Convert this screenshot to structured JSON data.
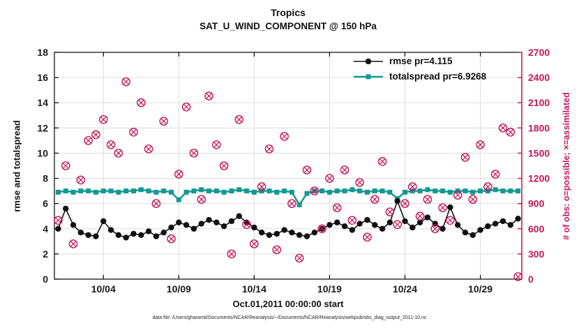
{
  "figure": {
    "title": "Tropics",
    "subtitle": "SAT_U_WIND_COMPONENT @ 150 hPa",
    "xlabel": "Oct.01,2011 00:00:00 start",
    "ylabel_left": "rmse and totalspread",
    "ylabel_right": "# of obs: o=possible; ×=assimilated",
    "footer": "data file: /Users/gharamti/Documents/NCAR/Reanalysis/~/Documents/NCAR/Reanalysis/webpub/obs_diag_output_2011-10.nc"
  },
  "legend": {
    "entries": [
      {
        "label": "rmse pr=4.115",
        "color": "#111111",
        "marker": "circle"
      },
      {
        "label": "totalspread pr=6.9268",
        "color": "#149990",
        "marker": "square"
      }
    ]
  },
  "colors": {
    "axis": "#000000",
    "grid": "#dddddd",
    "tick_text": "#1a1a1a",
    "right_axis": "#C2185B",
    "rmse": "#111111",
    "totalspread": "#149990",
    "observations": "#C2185B",
    "background": "#ffffff"
  },
  "chart_data": {
    "type": "line",
    "title": "Tropics",
    "subtitle": "SAT_U_WIND_COMPONENT @ 150 hPa",
    "xlabel": "Oct.01,2011 00:00:00 start",
    "ylabel_left": "rmse and totalspread",
    "ylabel_right": "# of obs: o=possible; ×=assimilated",
    "xlim": [
      0.75,
      31.75
    ],
    "x_start_day": 1.0,
    "x_step_days": 0.5,
    "x_ticks": [
      {
        "day": 4,
        "label": "10/04"
      },
      {
        "day": 9,
        "label": "10/09"
      },
      {
        "day": 14,
        "label": "10/14"
      },
      {
        "day": 19,
        "label": "10/19"
      },
      {
        "day": 24,
        "label": "10/24"
      },
      {
        "day": 29,
        "label": "10/29"
      }
    ],
    "ylim_left": [
      0,
      18
    ],
    "yticks_left": [
      0,
      2,
      4,
      6,
      8,
      10,
      12,
      14,
      16,
      18
    ],
    "ylim_right": [
      0,
      2700
    ],
    "yticks_right": [
      0,
      300,
      600,
      900,
      1200,
      1500,
      1800,
      2100,
      2400,
      2700
    ],
    "grid": true,
    "legend_position": "top-right-inside",
    "series": [
      {
        "name": "rmse",
        "axis": "left",
        "color": "#111111",
        "marker": "circle",
        "values": [
          4.0,
          5.6,
          4.3,
          3.7,
          3.5,
          3.4,
          4.6,
          3.9,
          3.5,
          3.3,
          3.6,
          3.5,
          3.8,
          3.4,
          3.7,
          4.1,
          4.5,
          4.3,
          4.0,
          4.4,
          4.7,
          4.5,
          4.2,
          4.6,
          5.0,
          4.5,
          4.1,
          3.7,
          3.5,
          3.6,
          3.9,
          3.7,
          3.5,
          3.4,
          3.7,
          4.0,
          4.3,
          4.5,
          4.2,
          3.9,
          4.4,
          4.7,
          4.3,
          4.0,
          4.5,
          6.2,
          4.6,
          4.1,
          4.5,
          4.9,
          4.4,
          4.0,
          5.7,
          4.3,
          3.7,
          3.5,
          3.9,
          4.2,
          4.4,
          4.6,
          4.3,
          4.8
        ]
      },
      {
        "name": "totalspread",
        "axis": "left",
        "color": "#149990",
        "marker": "square",
        "values": [
          6.9,
          7.0,
          6.9,
          7.0,
          7.0,
          6.9,
          7.0,
          7.0,
          6.9,
          7.0,
          7.0,
          7.1,
          7.0,
          6.9,
          7.0,
          6.9,
          6.3,
          6.9,
          7.0,
          7.1,
          7.0,
          7.0,
          6.9,
          7.0,
          7.1,
          7.0,
          6.9,
          7.0,
          7.0,
          6.9,
          7.0,
          6.9,
          5.9,
          6.8,
          7.0,
          7.0,
          6.9,
          7.0,
          7.0,
          7.1,
          7.0,
          6.9,
          7.0,
          7.0,
          6.9,
          6.4,
          6.9,
          7.0,
          7.0,
          7.1,
          7.0,
          7.0,
          6.9,
          7.0,
          7.0,
          6.9,
          7.0,
          7.0,
          7.1,
          7.0,
          7.0,
          7.0
        ]
      },
      {
        "name": "observations",
        "axis": "right",
        "color": "#C2185B",
        "marker": "circle-x",
        "values": [
          700,
          1350,
          420,
          1180,
          1650,
          1720,
          1900,
          1600,
          1500,
          2350,
          1750,
          2100,
          1550,
          900,
          1880,
          480,
          1250,
          2050,
          1500,
          950,
          2180,
          1600,
          1350,
          300,
          1900,
          650,
          420,
          1100,
          1550,
          350,
          1700,
          900,
          250,
          1300,
          1050,
          600,
          1200,
          850,
          1300,
          700,
          1150,
          500,
          950,
          1400,
          800,
          650,
          900,
          1100,
          750,
          950,
          600,
          850,
          700,
          1000,
          1450,
          950,
          1600,
          1100,
          1250,
          1800,
          1750,
          30
        ]
      }
    ]
  }
}
